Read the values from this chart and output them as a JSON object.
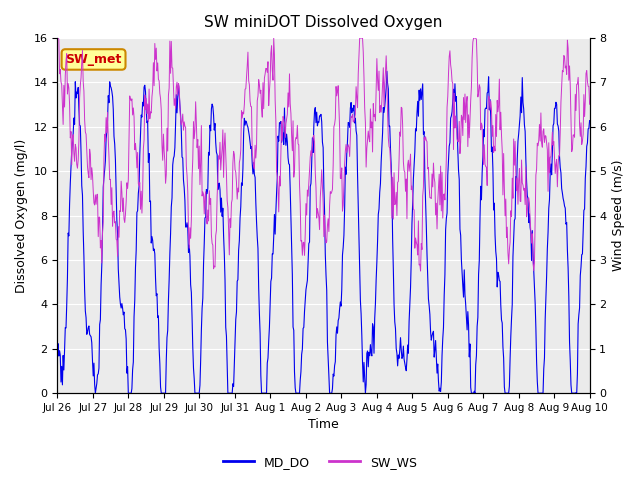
{
  "title": "SW miniDOT Dissolved Oxygen",
  "xlabel": "Time",
  "ylabel_left": "Dissolved Oxygen (mg/l)",
  "ylabel_right": "Wind Speed (m/s)",
  "ylim_left": [
    0,
    16
  ],
  "ylim_right": [
    0.0,
    8.0
  ],
  "yticks_left": [
    0,
    2,
    4,
    6,
    8,
    10,
    12,
    14,
    16
  ],
  "yticks_right": [
    0.0,
    1.0,
    2.0,
    3.0,
    4.0,
    5.0,
    6.0,
    7.0,
    8.0
  ],
  "xtick_labels": [
    "Jul 26",
    "Jul 27",
    "Jul 28",
    "Jul 29",
    "Jul 30",
    "Jul 31",
    "Aug 1",
    "Aug 2",
    "Aug 3",
    "Aug 4",
    "Aug 5",
    "Aug 6",
    "Aug 7",
    "Aug 8",
    "Aug 9",
    "Aug 10"
  ],
  "color_do": "#0000ee",
  "color_ws": "#cc33cc",
  "label_do": "MD_DO",
  "label_ws": "SW_WS",
  "annotation_text": "SW_met",
  "annotation_color": "#cc0000",
  "annotation_bg": "#ffff99",
  "annotation_border": "#cc8800",
  "background_color": "#ebebeb",
  "n_days": 15.5,
  "seed": 77
}
